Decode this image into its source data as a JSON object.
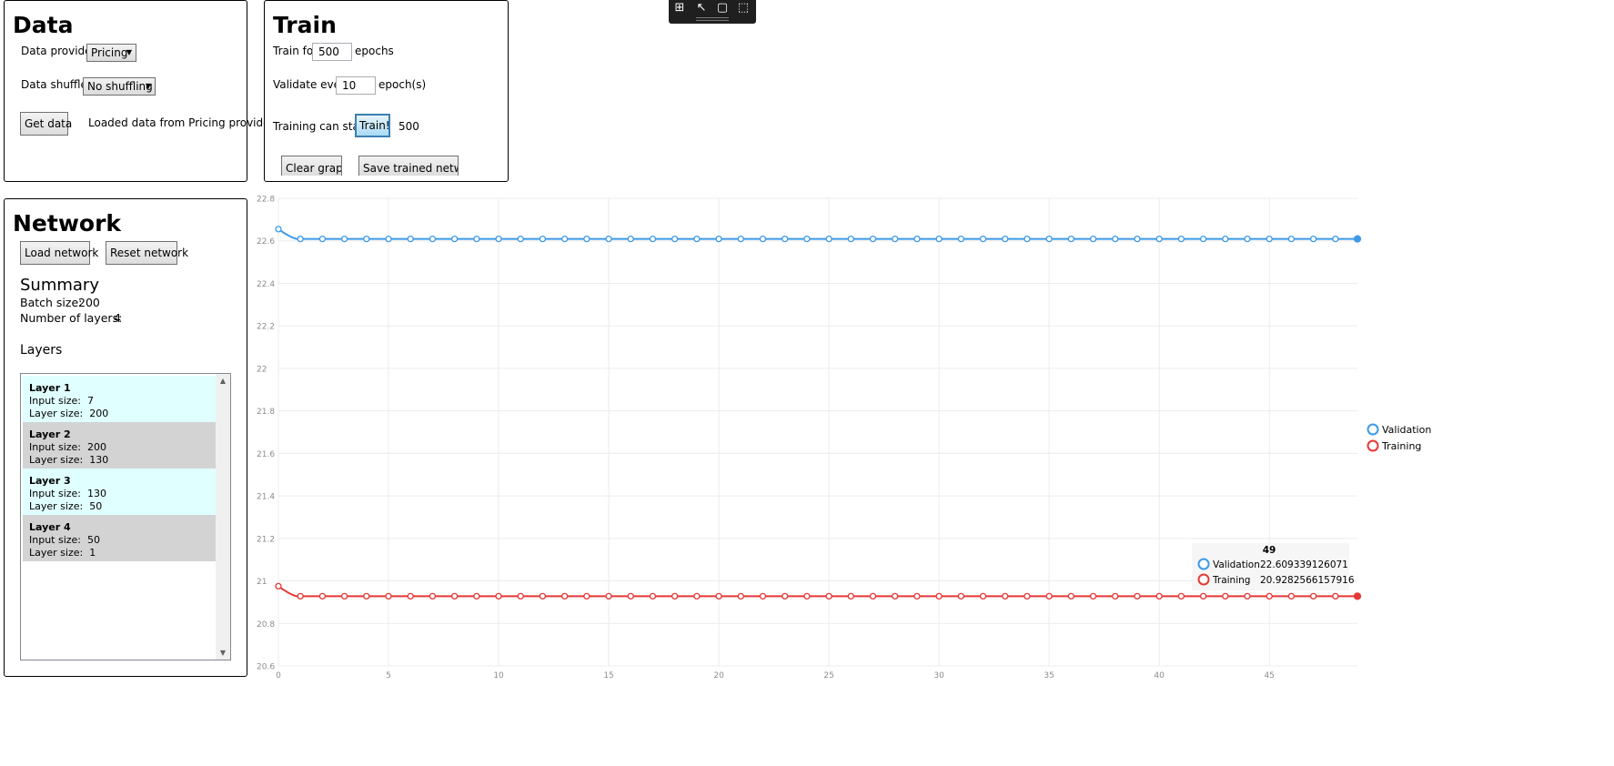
{
  "data_panel": {
    "title": "Data",
    "provider_label": "Data provider",
    "provider_value": "Pricing",
    "shuffler_label": "Data shuffler",
    "shuffler_value": "No shuffling",
    "get_data_label": "Get data",
    "status": "Loaded data from Pricing provider"
  },
  "train_panel": {
    "title": "Train",
    "train_for_label": "Train for",
    "epochs_value": "500",
    "epochs_label": "epochs",
    "validate_label": "Validate every",
    "validate_value": "10",
    "validate_suffix": "epoch(s)",
    "status": "Training can start",
    "train_button": "Train!",
    "progress_value": "500",
    "clear_graph_label": "Clear graph",
    "save_network_label": "Save trained network"
  },
  "network_panel": {
    "title": "Network",
    "load_label": "Load network",
    "reset_label": "Reset network",
    "summary_title": "Summary",
    "batch_label": "Batch size:",
    "batch_value": "200",
    "layers_count_label": "Number of layers:",
    "layers_count_value": "4",
    "layers_title": "Layers",
    "input_label": "Input size:",
    "size_label": "Layer size:",
    "layers": [
      {
        "title": "Layer  1",
        "input": "7",
        "size": "200",
        "color": "#e0ffff"
      },
      {
        "title": "Layer  2",
        "input": "200",
        "size": "130",
        "color": "#d3d3d3"
      },
      {
        "title": "Layer  3",
        "input": "130",
        "size": "50",
        "color": "#e0ffff"
      },
      {
        "title": "Layer  4",
        "input": "50",
        "size": "1",
        "color": "#d3d3d3"
      }
    ]
  },
  "toolbar": {
    "icons": [
      "select-element-icon",
      "cursor-icon",
      "layout-adorner-icon",
      "track-focus-icon"
    ]
  },
  "chart_data": {
    "type": "line",
    "ylim": [
      20.6,
      22.8
    ],
    "yticks": [
      "22.8",
      "22.6",
      "22.4",
      "22.2",
      "22",
      "21.8",
      "21.6",
      "21.4",
      "21.2",
      "21",
      "20.8",
      "20.6"
    ],
    "xlim": [
      0,
      49
    ],
    "xticks": [
      "0",
      "5",
      "10",
      "15",
      "20",
      "25",
      "30",
      "35",
      "40",
      "45"
    ],
    "grid": true,
    "legend_position": "right",
    "series": [
      {
        "name": "Validation",
        "color": "#3d9ae8",
        "first": 22.655,
        "rest": 22.609
      },
      {
        "name": "Training",
        "color": "#e53935",
        "first": 20.975,
        "rest": 20.928
      }
    ],
    "tooltip": {
      "header": "49",
      "rows": [
        {
          "name": "Validation",
          "value": "22.609339126071",
          "color": "#3d9ae8"
        },
        {
          "name": "Training",
          "value": "20.9282566157916",
          "color": "#e53935"
        }
      ]
    }
  }
}
